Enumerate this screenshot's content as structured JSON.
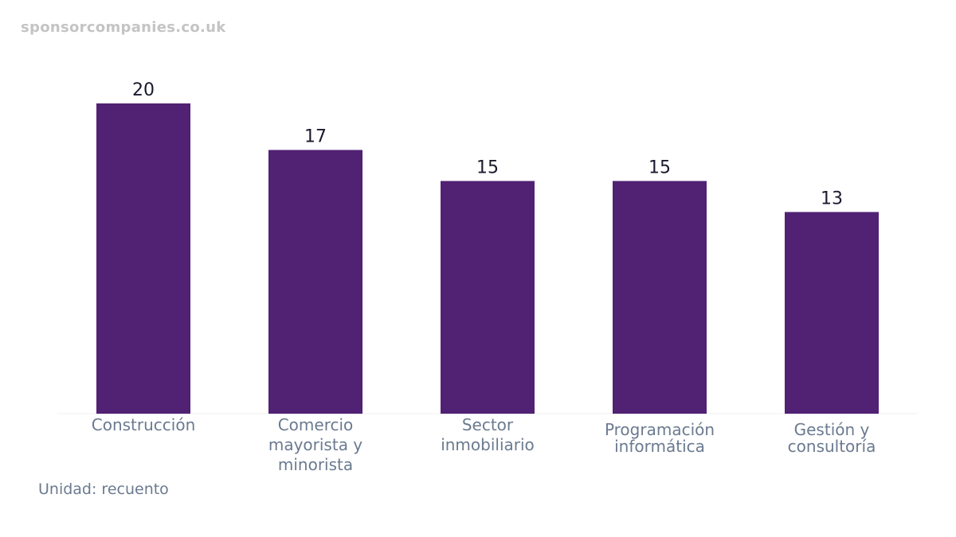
{
  "watermark": "sponsorcompanies.co.uk",
  "unit_note": "Unidad: recuento",
  "colors": {
    "bar": "#512174",
    "baseline": "#f0f0f0"
  },
  "chart_data": {
    "type": "bar",
    "categories": [
      [
        "Construcción"
      ],
      [
        "Comercio",
        "mayorista y",
        "minorista"
      ],
      [
        "Sector",
        "inmobiliario"
      ],
      [
        "Programación",
        "informática"
      ],
      [
        "Gestión y",
        "consultoría"
      ]
    ],
    "values": [
      20,
      17,
      15,
      15,
      13
    ],
    "ylim": [
      0,
      20
    ],
    "grid": false,
    "data_labels": true
  }
}
